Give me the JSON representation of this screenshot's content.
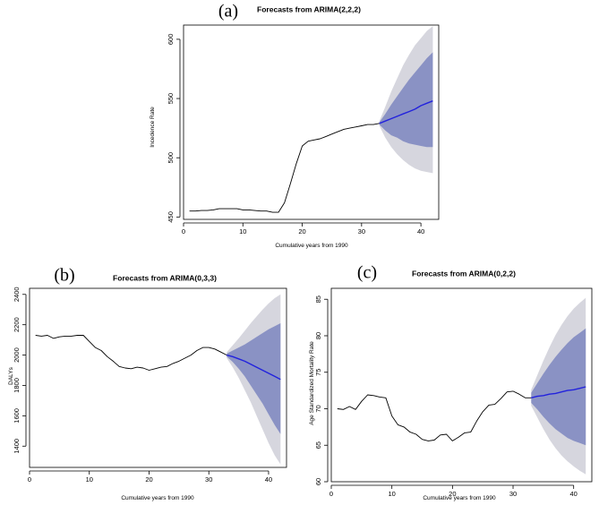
{
  "chart_data": [
    {
      "type": "line",
      "panel_label": "(a)",
      "title": "Forecasts from ARIMA(2,2,2)",
      "xlabel": "Cumulative years from 1990",
      "ylabel": "Incedence Rate",
      "xlim": [
        0,
        43
      ],
      "ylim": [
        448,
        612
      ],
      "xticks": [
        0,
        10,
        20,
        30,
        40
      ],
      "yticks": [
        450,
        500,
        550,
        600
      ],
      "series": [
        {
          "role": "observed",
          "x": [
            1,
            2,
            3,
            4,
            5,
            6,
            7,
            8,
            9,
            10,
            11,
            12,
            13,
            14,
            15,
            16,
            17,
            18,
            19,
            20,
            21,
            22,
            23,
            24,
            25,
            26,
            27,
            28,
            29,
            30,
            31,
            32,
            33
          ],
          "y": [
            455,
            455,
            455.5,
            455.5,
            456,
            457,
            457,
            457,
            457,
            456,
            456,
            455.5,
            455,
            455,
            454,
            454,
            462,
            478,
            495,
            510,
            514,
            515,
            516,
            518,
            520,
            522,
            524,
            525,
            526,
            527,
            528,
            528,
            529
          ]
        },
        {
          "role": "forecast",
          "color": "#2222dd",
          "x": [
            33,
            34,
            35,
            36,
            37,
            38,
            39,
            40,
            41,
            42
          ],
          "y": [
            529,
            531,
            533,
            535,
            537,
            539,
            541,
            544,
            546,
            548
          ]
        }
      ],
      "band80": {
        "color": "#8a92c4",
        "x": [
          33,
          34,
          35,
          36,
          37,
          38,
          39,
          40,
          41,
          42
        ],
        "upper": [
          530,
          537,
          545,
          552,
          559,
          566,
          572,
          578,
          584,
          589
        ],
        "lower": [
          528,
          523,
          519,
          517,
          514,
          512,
          511,
          510,
          509,
          509
        ]
      },
      "band95": {
        "color": "#d6d6de",
        "x": [
          33,
          34,
          35,
          36,
          37,
          38,
          39,
          40,
          41,
          42
        ],
        "upper": [
          531,
          543,
          556,
          567,
          578,
          587,
          595,
          601,
          607,
          611
        ],
        "lower": [
          527,
          517,
          509,
          503,
          498,
          494,
          491,
          489,
          488,
          487
        ]
      }
    },
    {
      "type": "line",
      "panel_label": "(b)",
      "title": "Forecasts from ARIMA(0,3,3)",
      "xlabel": "Cumulative years from 1990",
      "ylabel": "DALYs",
      "xlim": [
        0,
        43
      ],
      "ylim": [
        1260,
        2440
      ],
      "xticks": [
        0,
        10,
        20,
        30,
        40
      ],
      "yticks": [
        1400,
        1600,
        1800,
        2000,
        2200,
        2400
      ],
      "series": [
        {
          "role": "observed",
          "x": [
            1,
            2,
            3,
            4,
            5,
            6,
            7,
            8,
            9,
            10,
            11,
            12,
            13,
            14,
            15,
            16,
            17,
            18,
            19,
            20,
            21,
            22,
            23,
            24,
            25,
            26,
            27,
            28,
            29,
            30,
            31,
            32,
            33
          ],
          "y": [
            2130,
            2125,
            2130,
            2110,
            2120,
            2125,
            2125,
            2130,
            2130,
            2090,
            2050,
            2030,
            1990,
            1960,
            1925,
            1915,
            1910,
            1920,
            1915,
            1900,
            1910,
            1920,
            1925,
            1945,
            1960,
            1980,
            2000,
            2030,
            2050,
            2050,
            2040,
            2020,
            2000
          ]
        },
        {
          "role": "forecast",
          "color": "#2222dd",
          "x": [
            33,
            34,
            35,
            36,
            37,
            38,
            39,
            40,
            41,
            42
          ],
          "y": [
            2000,
            1990,
            1975,
            1960,
            1940,
            1920,
            1900,
            1880,
            1860,
            1840
          ]
        }
      ],
      "band80": {
        "color": "#8a92c4",
        "x": [
          33,
          34,
          35,
          36,
          37,
          38,
          39,
          40,
          41,
          42
        ],
        "upper": [
          2010,
          2030,
          2050,
          2070,
          2095,
          2120,
          2145,
          2170,
          2190,
          2210
        ],
        "lower": [
          1990,
          1955,
          1910,
          1860,
          1800,
          1740,
          1680,
          1610,
          1540,
          1480
        ]
      },
      "band95": {
        "color": "#d6d6de",
        "x": [
          33,
          34,
          35,
          36,
          37,
          38,
          39,
          40,
          41,
          42
        ],
        "upper": [
          2020,
          2065,
          2110,
          2160,
          2210,
          2255,
          2300,
          2340,
          2375,
          2400
        ],
        "lower": [
          1980,
          1920,
          1850,
          1770,
          1690,
          1600,
          1510,
          1420,
          1340,
          1280
        ]
      }
    },
    {
      "type": "line",
      "panel_label": "(c)",
      "title": "Forecasts from ARIMA(0,2,2)",
      "xlabel": "Cumulative years from 1990",
      "ylabel": "Age Standardized Mortality Rate",
      "xlim": [
        0,
        43
      ],
      "ylim": [
        60,
        86.5
      ],
      "xticks": [
        0,
        10,
        20,
        30,
        40
      ],
      "yticks": [
        60,
        65,
        70,
        75,
        80,
        85
      ],
      "series": [
        {
          "role": "observed",
          "x": [
            1,
            2,
            3,
            4,
            5,
            6,
            7,
            8,
            9,
            10,
            11,
            12,
            13,
            14,
            15,
            16,
            17,
            18,
            19,
            20,
            21,
            22,
            23,
            24,
            25,
            26,
            27,
            28,
            29,
            30,
            31,
            32,
            33
          ],
          "y": [
            70,
            69.9,
            70.3,
            69.9,
            71,
            71.9,
            71.8,
            71.6,
            71.5,
            69,
            67.8,
            67.5,
            66.8,
            66.5,
            65.8,
            65.6,
            65.7,
            66.4,
            66.5,
            65.6,
            66.1,
            66.7,
            66.8,
            68.3,
            69.6,
            70.5,
            70.6,
            71.4,
            72.3,
            72.4,
            72,
            71.5,
            71.5
          ]
        },
        {
          "role": "forecast",
          "color": "#2222dd",
          "x": [
            33,
            34,
            35,
            36,
            37,
            38,
            39,
            40,
            41,
            42
          ],
          "y": [
            71.5,
            71.7,
            71.8,
            72,
            72.1,
            72.3,
            72.5,
            72.6,
            72.8,
            73
          ]
        }
      ],
      "band80": {
        "color": "#8a92c4",
        "x": [
          33,
          34,
          35,
          36,
          37,
          38,
          39,
          40,
          41,
          42
        ],
        "upper": [
          72.2,
          73.5,
          74.8,
          76,
          77.1,
          78.1,
          79,
          79.8,
          80.4,
          81
        ],
        "lower": [
          70.8,
          69.9,
          68.9,
          68,
          67.2,
          66.6,
          66,
          65.6,
          65.3,
          65
        ]
      },
      "band95": {
        "color": "#d6d6de",
        "x": [
          33,
          34,
          35,
          36,
          37,
          38,
          39,
          40,
          41,
          42
        ],
        "upper": [
          72.6,
          74.6,
          76.6,
          78.4,
          80.1,
          81.5,
          82.7,
          83.7,
          84.5,
          85.2
        ],
        "lower": [
          70.4,
          68.8,
          67.2,
          65.8,
          64.6,
          63.6,
          62.8,
          62.1,
          61.5,
          61
        ]
      }
    }
  ]
}
